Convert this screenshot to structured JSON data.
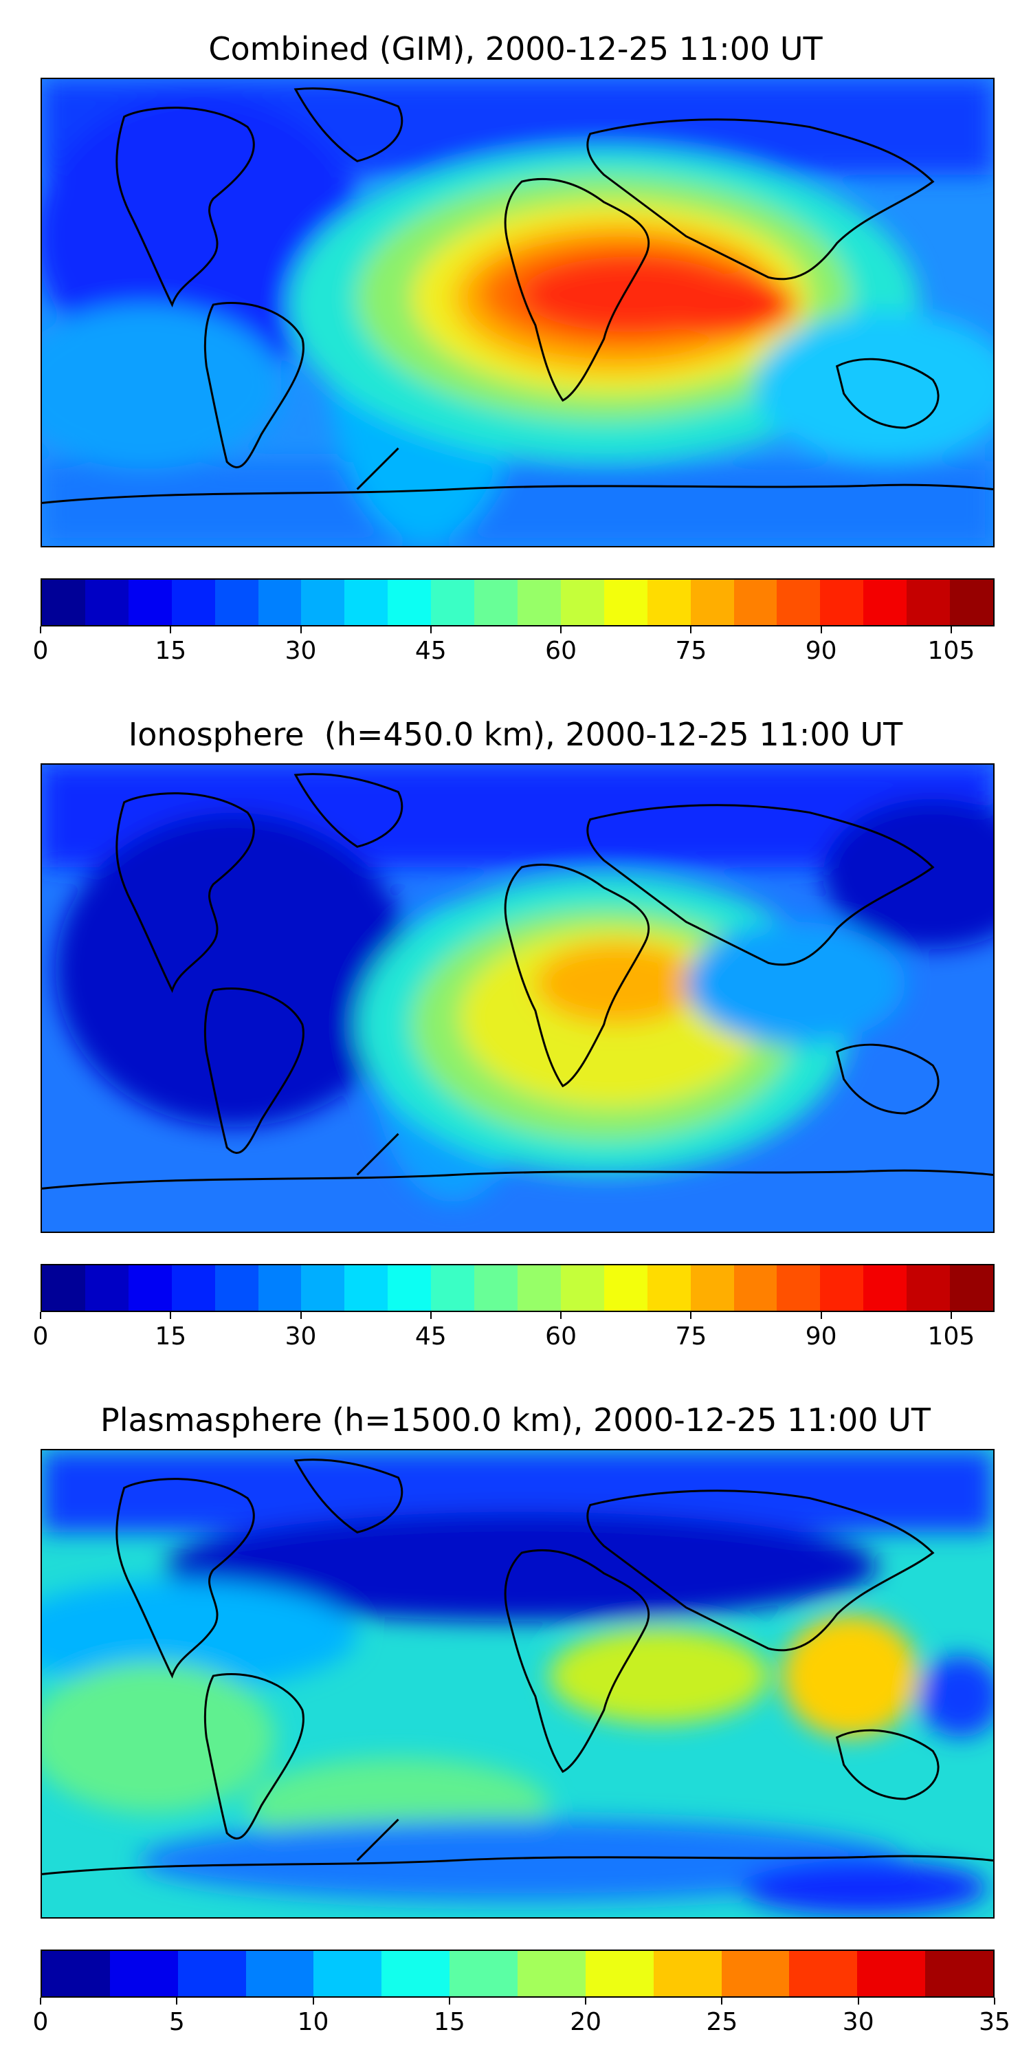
{
  "panels": [
    {
      "title": "Combined (GIM), 2000-12-25 11:00 UT",
      "colorbar": {
        "min": 0,
        "max": 110,
        "levels": 22,
        "ticks": [
          "0",
          "15",
          "30",
          "45",
          "60",
          "75",
          "90",
          "105"
        ],
        "tick_values": [
          0,
          15,
          30,
          45,
          60,
          75,
          90,
          105
        ]
      }
    },
    {
      "title": "Ionosphere  (h=450.0 km), 2000-12-25 11:00 UT",
      "colorbar": {
        "min": 0,
        "max": 110,
        "levels": 22,
        "ticks": [
          "0",
          "15",
          "30",
          "45",
          "60",
          "75",
          "90",
          "105"
        ],
        "tick_values": [
          0,
          15,
          30,
          45,
          60,
          75,
          90,
          105
        ]
      }
    },
    {
      "title": "Plasmasphere (h=1500.0 km), 2000-12-25 11:00 UT",
      "colorbar": {
        "min": 0,
        "max": 35,
        "levels": 14,
        "ticks": [
          "0",
          "5",
          "10",
          "15",
          "20",
          "25",
          "30",
          "35"
        ],
        "tick_values": [
          0,
          5,
          10,
          15,
          20,
          25,
          30,
          35
        ]
      }
    }
  ],
  "colormap": "jet"
}
